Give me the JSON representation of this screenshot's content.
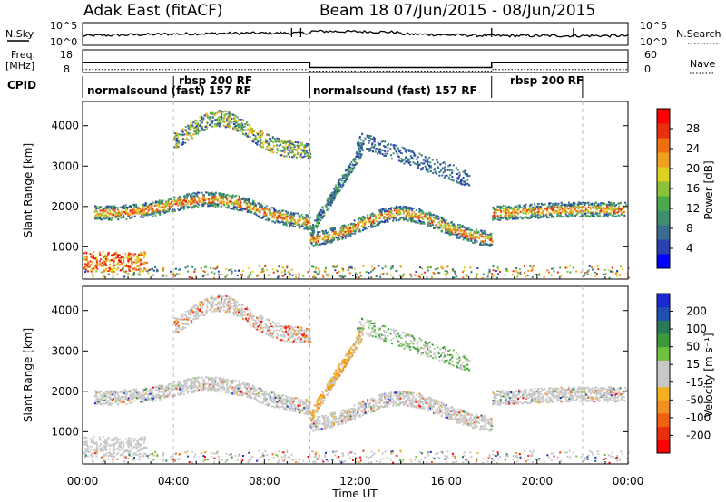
{
  "header": {
    "title": "Adak East (fitACF)",
    "subtitle": "Beam 18  07/Jun/2015 - 08/Jun/2015"
  },
  "labels": {
    "nsky": "N.Sky",
    "nsearch": "N.Search",
    "freq_top": "Freq.",
    "freq_unit": "[MHz]",
    "nave": "Nave",
    "cpid": "CPID",
    "ylabel": "Slant Range [km]",
    "xlabel": "Time UT"
  },
  "noise_axis": {
    "left_ticks": [
      "10^5",
      "10^0"
    ],
    "right_ticks": [
      "10^5",
      "10^0"
    ]
  },
  "freq_axis": {
    "left_ticks": [
      "18",
      "8"
    ],
    "right_ticks": [
      "60",
      "0"
    ]
  },
  "cpid_segments": [
    {
      "label": "normalsound (fast) 157 RF",
      "start_h": 0,
      "end_h": 10
    },
    {
      "label": "rbsp 200 RF",
      "start_h": 4.0,
      "end_h": 10
    },
    {
      "label": "normalsound (fast) 157 RF",
      "start_h": 10,
      "end_h": 18
    },
    {
      "label": "rbsp 200 RF",
      "start_h": 18,
      "end_h": 22
    },
    {
      "label": "",
      "start_h": 22,
      "end_h": 24
    }
  ],
  "chart_data": [
    {
      "type": "heatmap",
      "name": "power",
      "x_ticks": [
        "00:00",
        "04:00",
        "08:00",
        "12:00",
        "16:00",
        "20:00",
        "00:00"
      ],
      "xlim_hours": [
        0,
        24
      ],
      "ylim": [
        200,
        4600
      ],
      "y_ticks": [
        1000,
        2000,
        3000,
        4000
      ],
      "colorbar": {
        "label": "Power [dB]",
        "ticks": [
          "4",
          "8",
          "12",
          "16",
          "20",
          "24",
          "28"
        ],
        "colors": [
          "#0000ff",
          "#2a3fb0",
          "#3a6e8e",
          "#3f8f6e",
          "#4aa84a",
          "#8cc23a",
          "#e0d020",
          "#f0a020",
          "#f07010",
          "#e83010",
          "#ff0000"
        ]
      }
    },
    {
      "type": "heatmap",
      "name": "velocity",
      "x_ticks": [
        "00:00",
        "04:00",
        "08:00",
        "12:00",
        "16:00",
        "20:00",
        "00:00"
      ],
      "xlim_hours": [
        0,
        24
      ],
      "ylim": [
        200,
        4600
      ],
      "y_ticks": [
        1000,
        2000,
        3000,
        4000
      ],
      "colorbar": {
        "label": "Velocity [m s⁻¹]",
        "ticks": [
          "200",
          "100",
          "50",
          "15",
          "-15",
          "-50",
          "-100",
          "-200"
        ],
        "colors": [
          "#1a2ad0",
          "#2050b0",
          "#2a7a5a",
          "#3a9a3a",
          "#70c040",
          "#c8c8c8",
          "#c8c8c8",
          "#f0b020",
          "#f09020",
          "#f06010",
          "#e83010",
          "#ff0000"
        ]
      }
    }
  ],
  "colors": {
    "gray": "#c8c8c8",
    "frame": "#000000"
  }
}
